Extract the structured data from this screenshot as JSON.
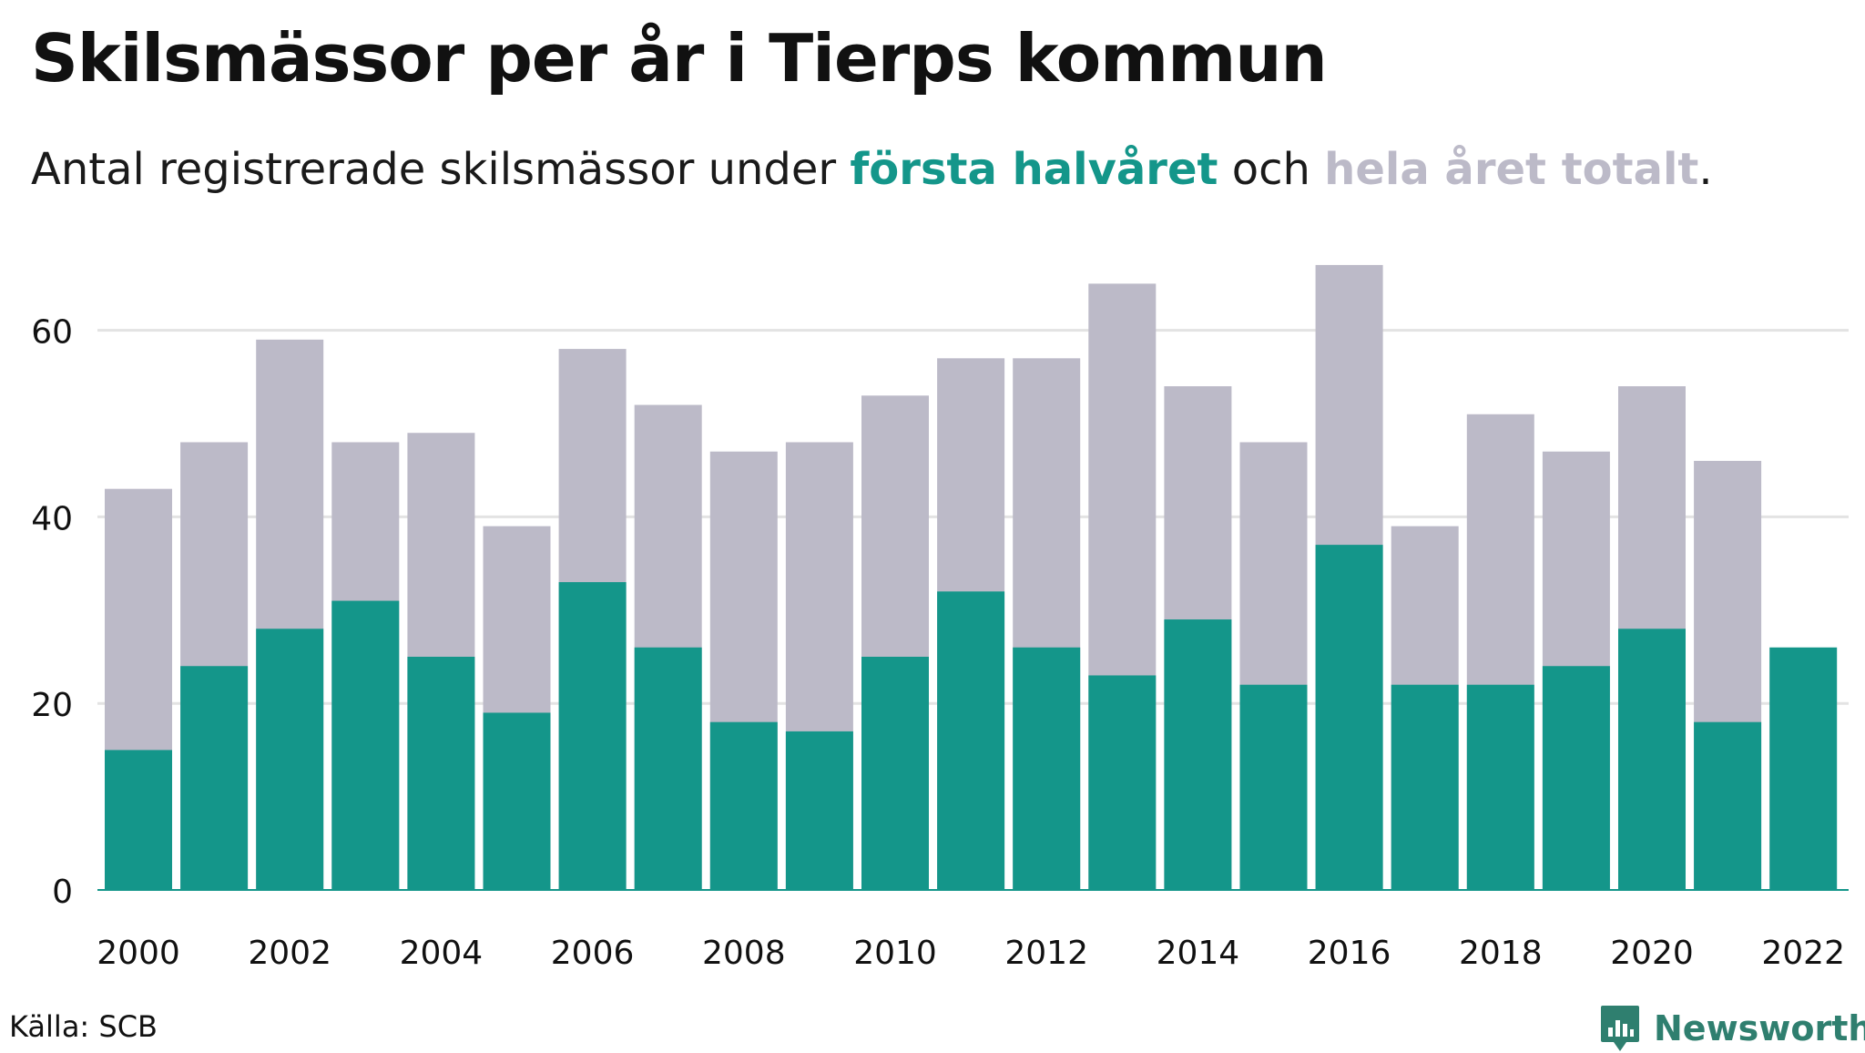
{
  "header": {
    "title": "Skilsmässor per år i Tierps kommun",
    "subtitle_pre": "Antal registrerade skilsmässor under ",
    "subtitle_first": "första halvåret",
    "subtitle_mid": " och ",
    "subtitle_total": "hela året totalt",
    "subtitle_post": "."
  },
  "footer": {
    "source": "Källa: SCB",
    "brand": "Newsworthy"
  },
  "colors": {
    "first_half": "#14968a",
    "full_year": "#bcbac8",
    "grid": "#e3e3e3",
    "text": "#111111",
    "brand": "#2f7f6f"
  },
  "chart_data": {
    "type": "bar",
    "categories": [
      "2000",
      "2001",
      "2002",
      "2003",
      "2004",
      "2005",
      "2006",
      "2007",
      "2008",
      "2009",
      "2010",
      "2011",
      "2012",
      "2013",
      "2014",
      "2015",
      "2016",
      "2017",
      "2018",
      "2019",
      "2020",
      "2021",
      "2022"
    ],
    "series": [
      {
        "name": "första halvåret",
        "values": [
          15,
          24,
          28,
          31,
          25,
          19,
          33,
          26,
          18,
          17,
          25,
          32,
          26,
          23,
          29,
          22,
          37,
          22,
          22,
          24,
          28,
          18,
          26
        ]
      },
      {
        "name": "hela året totalt",
        "values": [
          43,
          48,
          59,
          48,
          49,
          39,
          58,
          52,
          47,
          48,
          53,
          57,
          57,
          65,
          54,
          48,
          67,
          39,
          51,
          47,
          54,
          46,
          null
        ]
      }
    ],
    "x_tick_labels": [
      "2000",
      "2002",
      "2004",
      "2006",
      "2008",
      "2010",
      "2012",
      "2014",
      "2016",
      "2018",
      "2020",
      "2022"
    ],
    "y_ticks": [
      0,
      20,
      40,
      60
    ],
    "ylim": [
      0,
      70
    ],
    "grid": true,
    "overlap": true
  }
}
